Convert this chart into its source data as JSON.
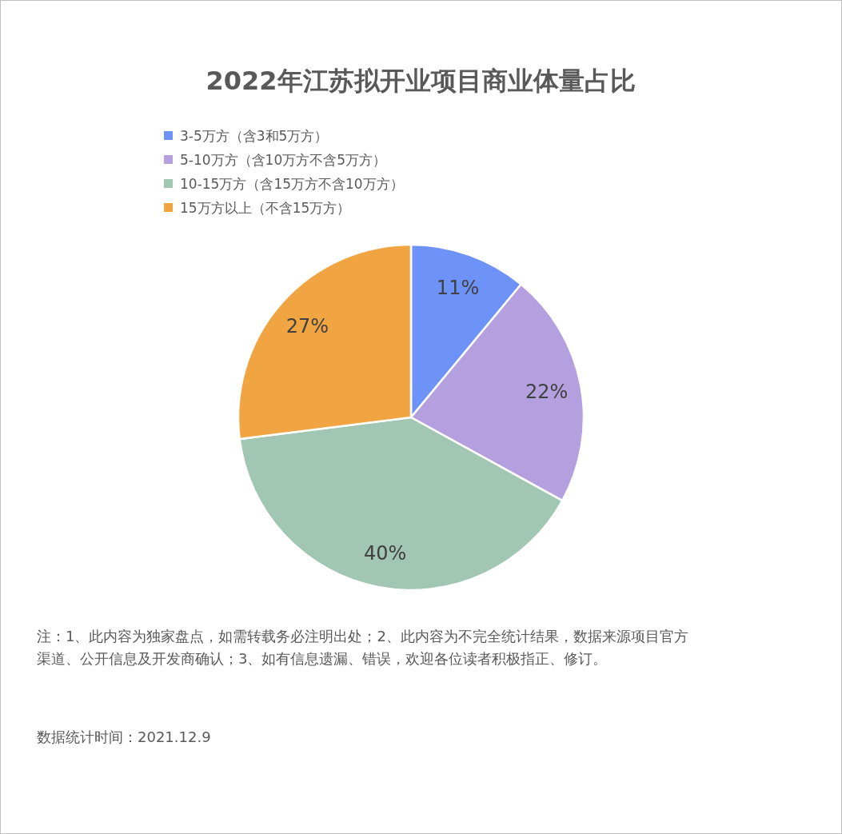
{
  "chart_data": {
    "type": "pie",
    "title": "2022年江苏拟开业项目商业体量占比",
    "categories": [
      "3-5万方（含3和5万方）",
      "5-10万方（含10万方不含5万方）",
      "10-15万方（含15万方不含10万方）",
      "15万方以上（不含15万方）"
    ],
    "values": [
      11,
      22,
      40,
      27
    ],
    "colors": [
      "#6e93f8",
      "#b4a0df",
      "#a1c6b3",
      "#f1a442"
    ],
    "value_labels": [
      "11%",
      "22%",
      "40%",
      "27%"
    ],
    "legend": "top left",
    "annotations": [
      "注：1、此内容为独家盘点，如需转载务必注明出处；2、此内容为不完全统计结果，数据来源项目官方渠道、公开信息及开发商确认；3、如有信息遗漏、错误，欢迎各位读者积极指正、修订。",
      "数据统计时间：2021.12.9"
    ]
  }
}
